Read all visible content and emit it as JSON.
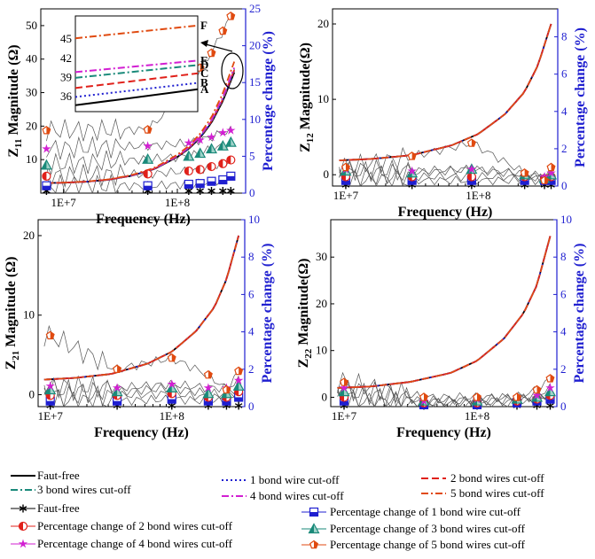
{
  "legend": [
    {
      "label": "Faut-free",
      "style": "solid",
      "color": "#000000"
    },
    {
      "label": "1 bond wire cut-off",
      "style": "dotted",
      "color": "#1f1fd0"
    },
    {
      "label": "2 bond wires cut-off",
      "style": "dashed",
      "color": "#e0201a"
    },
    {
      "label": "3 bond wires cut-off",
      "style": "dashdot",
      "color": "#1a8a7a"
    },
    {
      "label": "4 bond wires cut-off",
      "style": "dashdot",
      "color": "#d21fd2"
    },
    {
      "label": "5 bond wires cut-off",
      "style": "dashdot",
      "color": "#e04a10"
    },
    {
      "label": "Faut-free",
      "marker": "asterisk",
      "color": "#000000"
    },
    {
      "label": "Percentage change of 1 bond wire cut-off",
      "marker": "square",
      "color": "#1f1fd0"
    },
    {
      "label": "Percentage change of 2 bond wires cut-off",
      "marker": "halfcircle",
      "color": "#e0201a"
    },
    {
      "label": "Percentage change of 3 bond wires cut-off",
      "marker": "triangle",
      "color": "#1a8a7a"
    },
    {
      "label": "Percentage change of 4 bond wires cut-off",
      "marker": "star",
      "color": "#d21fd2"
    },
    {
      "label": "Percentage change of 5 bond wires cut-off",
      "marker": "pentagon",
      "color": "#e04a10"
    }
  ],
  "chart_data": [
    {
      "type": "line",
      "id": "z11",
      "xlabel": "Frequency (Hz)",
      "ylabel_main": "Z",
      "ylabel_sub": "11",
      "ylabel_rest": " Magnitude (Ω)",
      "y2label": "Percentage change (%)",
      "x_ticklabels": [
        "1E+7",
        "1E+8"
      ],
      "xlim": [
        6.8,
        8.6
      ],
      "ylim": [
        0,
        55
      ],
      "yticks": [
        10,
        20,
        30,
        40,
        50
      ],
      "y2lim": [
        0,
        25
      ],
      "y2ticks": [
        0,
        5,
        10,
        15,
        20,
        25
      ],
      "series_x": [
        6.85,
        7.0,
        7.2,
        7.4,
        7.6,
        7.8,
        8.0,
        8.1,
        8.2,
        8.3,
        8.4,
        8.5
      ],
      "series_base": [
        3.0,
        3.1,
        3.4,
        4.0,
        5.2,
        7.2,
        10.8,
        13.2,
        16.5,
        21.0,
        27.5,
        36.0
      ],
      "series_mult": [
        1.0,
        1.01,
        1.02,
        1.03,
        1.04,
        1.09
      ],
      "marker_x": [
        6.85,
        7.74,
        8.1,
        8.2,
        8.3,
        8.4,
        8.47
      ],
      "pct": [
        [
          0.3,
          0.3,
          0.3,
          0.3,
          0.3,
          0.3,
          0.3
        ],
        [
          1.0,
          1.0,
          1.2,
          1.3,
          1.6,
          1.8,
          2.3
        ],
        [
          2.3,
          2.6,
          3.0,
          3.2,
          3.6,
          4.0,
          4.5
        ],
        [
          3.8,
          4.6,
          5.0,
          5.4,
          6.0,
          6.4,
          6.9
        ],
        [
          6.0,
          6.4,
          6.8,
          7.2,
          7.6,
          8.2,
          8.5
        ],
        [
          8.5,
          8.6,
          14.0,
          17.0,
          19.0,
          22.0,
          24.0
        ]
      ],
      "inset": {
        "yticks": [
          36,
          39,
          42,
          45
        ],
        "curve_labels": [
          "A",
          "B",
          "C",
          "D",
          "E",
          "F"
        ],
        "values_start": [
          34.5,
          35.8,
          37.2,
          38.8,
          39.7,
          45.0
        ],
        "values_end": [
          37.0,
          38.0,
          39.5,
          40.8,
          41.5,
          47.0
        ]
      }
    },
    {
      "type": "line",
      "id": "z12",
      "xlabel": "Frequency (Hz)",
      "ylabel_main": "Z",
      "ylabel_sub": "12",
      "ylabel_rest": " Magnitude(Ω)",
      "y2label": "Percentage change (%)",
      "x_ticklabels": [
        "1E+7",
        "1E+8"
      ],
      "xlim": [
        6.9,
        8.6
      ],
      "ylim": [
        -1.5,
        22
      ],
      "yticks": [
        0,
        10,
        20
      ],
      "y2lim": [
        0,
        9.5
      ],
      "y2ticks": [
        0,
        2,
        4,
        6,
        8
      ],
      "series_x": [
        6.95,
        7.2,
        7.5,
        7.8,
        8.0,
        8.2,
        8.35,
        8.45,
        8.55
      ],
      "series_base": [
        1.9,
        2.1,
        2.6,
        3.9,
        5.4,
        8.0,
        11.0,
        14.5,
        20.0
      ],
      "marker_x": [
        7.0,
        7.5,
        7.95,
        8.35,
        8.5,
        8.55
      ],
      "pct": [
        [
          0.05,
          0.05,
          0.05,
          0.05,
          0.05,
          0.05
        ],
        [
          0.3,
          0.3,
          0.3,
          0.3,
          0.3,
          0.3
        ],
        [
          0.5,
          0.5,
          0.5,
          0.5,
          0.4,
          0.5
        ],
        [
          0.8,
          0.7,
          0.9,
          0.6,
          0.4,
          0.6
        ],
        [
          0.9,
          0.8,
          0.9,
          0.7,
          0.5,
          0.7
        ],
        [
          1.0,
          1.6,
          2.3,
          0.7,
          0.3,
          1.0
        ]
      ]
    },
    {
      "type": "line",
      "id": "z21",
      "xlabel": "Frequency (Hz)",
      "ylabel_main": "Z",
      "ylabel_sub": "21",
      "ylabel_rest": " Magnitude (Ω)",
      "y2label": "Percentage change (%)",
      "x_ticklabels": [
        "1E+7",
        "1E+8"
      ],
      "xlim": [
        6.9,
        8.6
      ],
      "ylim": [
        -1.5,
        22
      ],
      "yticks": [
        0,
        10,
        20
      ],
      "y2lim": [
        0,
        10
      ],
      "y2ticks": [
        0,
        2,
        4,
        6,
        8,
        10
      ],
      "series_x": [
        6.95,
        7.2,
        7.5,
        7.8,
        8.0,
        8.2,
        8.35,
        8.45,
        8.55
      ],
      "series_base": [
        1.9,
        2.1,
        2.6,
        3.9,
        5.4,
        8.0,
        11.0,
        14.5,
        20.0
      ],
      "marker_x": [
        7.0,
        7.55,
        8.0,
        8.3,
        8.45,
        8.55
      ],
      "pct": [
        [
          0.05,
          0.05,
          0.05,
          0.05,
          0.05,
          0.05
        ],
        [
          0.3,
          0.3,
          0.4,
          0.3,
          0.3,
          0.5
        ],
        [
          0.6,
          0.6,
          0.7,
          0.5,
          0.5,
          0.8
        ],
        [
          0.9,
          0.8,
          1.0,
          0.7,
          0.7,
          1.1
        ],
        [
          1.1,
          1.0,
          1.2,
          1.0,
          1.0,
          1.4
        ],
        [
          3.8,
          2.0,
          2.6,
          1.7,
          0.9,
          1.9
        ]
      ]
    },
    {
      "type": "line",
      "id": "z22",
      "xlabel": "Frequency (Hz)",
      "ylabel_main": "Z",
      "ylabel_sub": "22",
      "ylabel_rest": " Magnitude(Ω)",
      "y2label": "Percentage change (%)",
      "x_ticklabels": [
        "1E+7",
        "1E+8"
      ],
      "xlim": [
        6.9,
        8.6
      ],
      "ylim": [
        -2,
        38
      ],
      "yticks": [
        0,
        10,
        20,
        30
      ],
      "y2lim": [
        0,
        10
      ],
      "y2ticks": [
        0,
        2,
        4,
        6,
        8,
        10
      ],
      "series_x": [
        6.95,
        7.2,
        7.5,
        7.8,
        8.0,
        8.2,
        8.35,
        8.45,
        8.55
      ],
      "series_base": [
        2.0,
        2.3,
        3.3,
        5.2,
        7.8,
        12.5,
        18.0,
        24.0,
        34.5
      ],
      "marker_x": [
        7.0,
        7.6,
        8.0,
        8.3,
        8.45,
        8.55
      ],
      "pct": [
        [
          0.05,
          0.05,
          0.05,
          0.05,
          0.05,
          0.05
        ],
        [
          0.3,
          0.1,
          0.1,
          0.2,
          0.3,
          0.4
        ],
        [
          0.5,
          0.2,
          0.2,
          0.3,
          0.4,
          0.6
        ],
        [
          0.8,
          0.3,
          0.3,
          0.4,
          0.5,
          0.8
        ],
        [
          1.0,
          0.3,
          0.4,
          0.5,
          0.6,
          1.0
        ],
        [
          1.3,
          0.5,
          0.5,
          0.5,
          0.9,
          1.5
        ]
      ]
    }
  ]
}
